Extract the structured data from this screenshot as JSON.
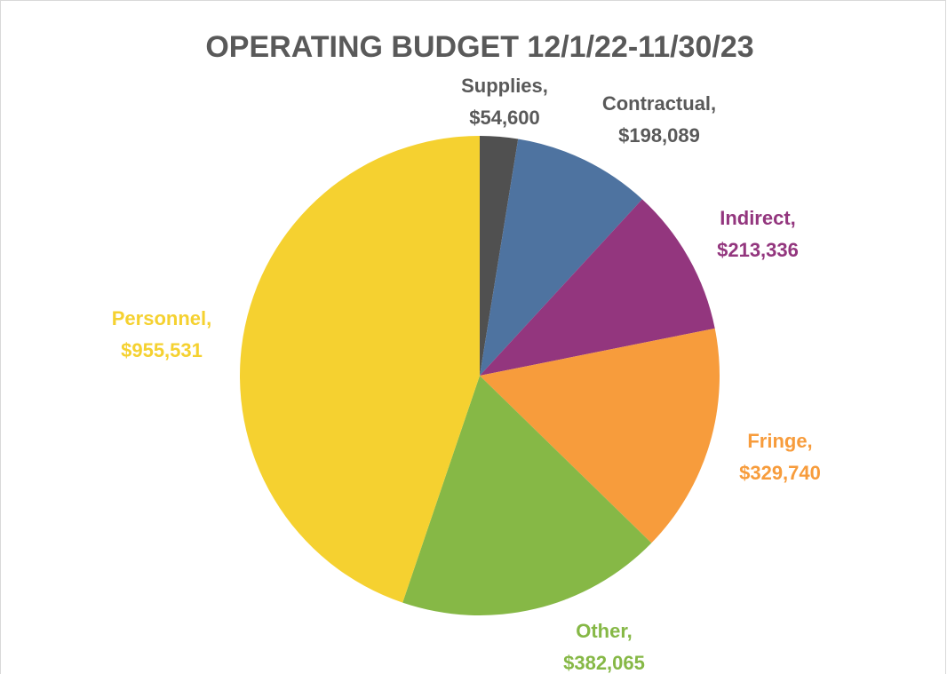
{
  "chart_data": {
    "type": "pie",
    "title": "OPERATING BUDGET 12/1/22-11/30/23",
    "categories": [
      "Supplies,",
      "Contractual,",
      "Indirect,",
      "Fringe,",
      "Other,",
      "Personnel,"
    ],
    "values": [
      54600,
      198089,
      213336,
      329740,
      382065,
      955531
    ],
    "value_labels": [
      "$54,600",
      "$198,089",
      "$213,336",
      "$329,740",
      "$382,065",
      "$955,531"
    ],
    "colors": [
      "#505050",
      "#4e73a0",
      "#93367e",
      "#f79c3c",
      "#86b846",
      "#f5d130"
    ]
  }
}
